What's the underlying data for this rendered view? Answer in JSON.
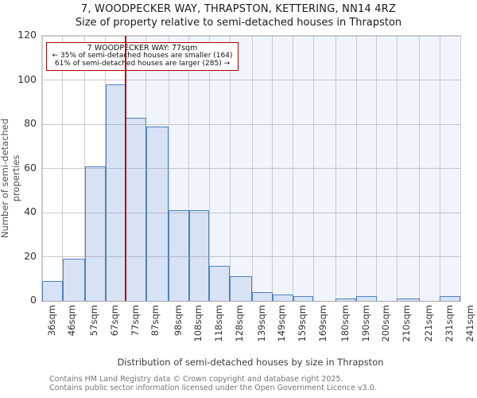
{
  "title": "7, WOODPECKER WAY, THRAPSTON, KETTERING, NN14 4RZ",
  "subtitle": "Size of property relative to semi-detached houses in Thrapston",
  "annotation": {
    "line1": "7 WOODPECKER WAY: 77sqm",
    "line2": "← 35% of semi-detached houses are smaller (164)",
    "line3": "61% of semi-detached houses are larger (285) →"
  },
  "chart_data": {
    "type": "bar",
    "title": "Size of property relative to semi-detached houses in Thrapston",
    "xlabel": "Distribution of semi-detached houses by size in Thrapston",
    "ylabel": "Number of semi-detached properties",
    "bin_edges_sqm": [
      36,
      46,
      57,
      67,
      77,
      87,
      98,
      108,
      118,
      128,
      139,
      149,
      159,
      169,
      180,
      190,
      200,
      210,
      221,
      231,
      241
    ],
    "tick_labels": [
      "36sqm",
      "46sqm",
      "57sqm",
      "67sqm",
      "77sqm",
      "87sqm",
      "98sqm",
      "108sqm",
      "118sqm",
      "128sqm",
      "139sqm",
      "149sqm",
      "159sqm",
      "169sqm",
      "180sqm",
      "190sqm",
      "200sqm",
      "210sqm",
      "221sqm",
      "231sqm",
      "241sqm"
    ],
    "values": [
      9,
      19,
      61,
      98,
      83,
      79,
      41,
      41,
      16,
      11,
      4,
      3,
      2,
      0,
      1,
      2,
      0,
      1,
      0,
      2
    ],
    "ylim": [
      0,
      120
    ],
    "yticks": [
      0,
      20,
      40,
      60,
      80,
      100,
      120
    ],
    "marker_sqm": 77,
    "grid": true,
    "legend": "none",
    "shaded_region": "right of marker"
  },
  "footer": {
    "line1": "Contains HM Land Registry data © Crown copyright and database right 2025.",
    "line2": "Contains public sector information licensed under the Open Government Licence v3.0."
  },
  "colors": {
    "bar_fill": "#d7e2f4",
    "bar_edge": "#4f82c2",
    "shade": "#f0f4fc",
    "grid": "#cccccc",
    "grid_over_bars": "rgba(140,140,140,0.45)",
    "marker": "#b40000",
    "annotation_border": "#b40000"
  }
}
